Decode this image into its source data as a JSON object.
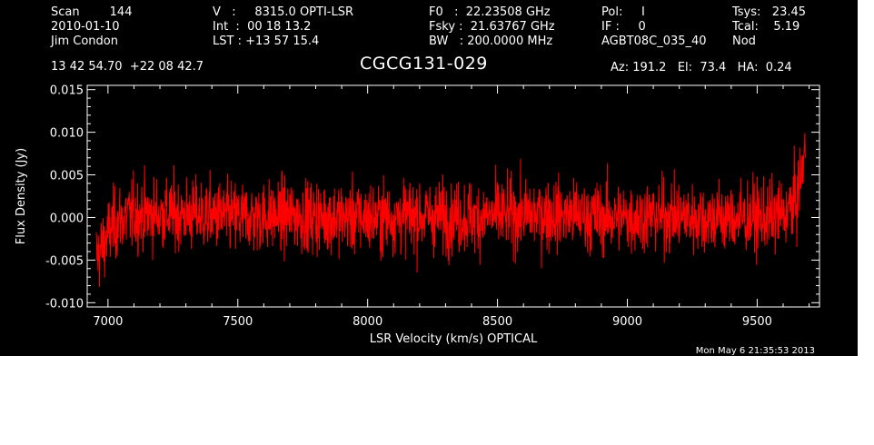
{
  "header": {
    "col1": {
      "line1": "Scan        144",
      "line2": "2010-01-10",
      "line3": "Jim Condon"
    },
    "col2": {
      "line1": "V   :     8315.0 OPTI-LSR",
      "line2": "Int  :  00 18 13.2",
      "line3": "LST : +13 57 15.4"
    },
    "col3": {
      "line1": "F0   :  22.23508 GHz",
      "line2": "Fsky :  21.63767 GHz",
      "line3": "BW   : 200.0000 MHz"
    },
    "col4": {
      "line1": "Pol:     I",
      "line2": "IF :     0",
      "line3": "AGBT08C_035_40"
    },
    "col5": {
      "line1": "Tsys:   23.45",
      "line2": "Tcal:    5.19",
      "line3": "Nod"
    },
    "coords": "13 42 54.70  +22 08 42.7",
    "source": "CGCG131-029",
    "pointing": "Az: 191.2   El:  73.4   HA:  0.24",
    "timestamp": "Mon May  6 21:35:53 2013"
  },
  "colors": {
    "background": "#000000",
    "foreground": "#ffffff",
    "trace": "#ff0000"
  },
  "chart_data": {
    "type": "line",
    "xlabel": "LSR Velocity (km/s) OPTICAL",
    "ylabel": "Flux Density (Jy)",
    "xlim": [
      6920,
      9740
    ],
    "ylim": [
      -0.0105,
      0.0155
    ],
    "xticks": [
      7000,
      7500,
      8000,
      8500,
      9000,
      9500
    ],
    "yticks": [
      -0.01,
      -0.005,
      0.0,
      0.005,
      0.01,
      0.015
    ],
    "xtick_labels": [
      "7000",
      "7500",
      "8000",
      "8500",
      "9000",
      "9500"
    ],
    "ytick_labels": [
      "-0.010",
      "-0.005",
      "0.000",
      "0.005",
      "0.010",
      "0.015"
    ],
    "series": [
      {
        "color": "#ff0000",
        "noise_rms": 0.0021,
        "x": [
          6955,
          6970,
          6985,
          7000,
          7020,
          7050,
          7100,
          7200,
          7300,
          7400,
          7500,
          7600,
          7700,
          7800,
          7900,
          8000,
          8100,
          8200,
          8300,
          8400,
          8500,
          8600,
          8700,
          8800,
          8900,
          9000,
          9100,
          9200,
          9300,
          9400,
          9500,
          9550,
          9600,
          9620,
          9640,
          9655,
          9665,
          9675,
          9685
        ],
        "y": [
          -0.0045,
          -0.004,
          -0.003,
          -0.002,
          -0.001,
          -0.0002,
          0.0003,
          0.0004,
          0.0003,
          0.0002,
          0.0,
          0.0001,
          0.0002,
          0.0001,
          0.0,
          0.0,
          0.0001,
          0.0002,
          0.0001,
          0.0,
          0.0002,
          0.0003,
          0.0004,
          0.0002,
          0.0,
          0.0,
          0.0002,
          0.0001,
          0.0,
          -0.0001,
          0.0,
          0.0,
          0.0003,
          0.0008,
          0.0015,
          0.0025,
          0.004,
          0.006,
          0.0085
        ]
      }
    ]
  }
}
